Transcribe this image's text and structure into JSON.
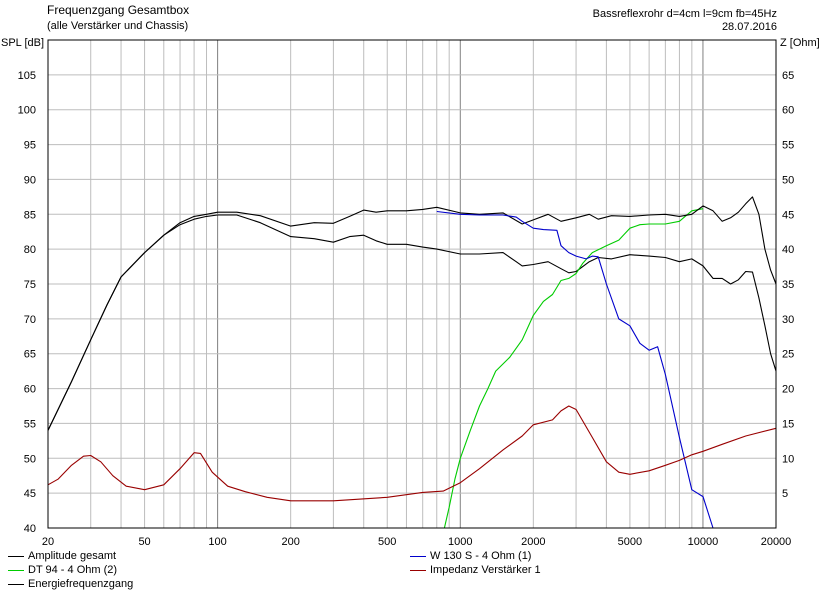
{
  "header": {
    "title": "Frequenzgang Gesamtbox",
    "subtitle": "(alle Verstärker und Chassis)",
    "info": "Bassreflexrohr d=4cm l=9cm fb=45Hz",
    "date": "28.07.2016"
  },
  "chart_data": {
    "type": "line",
    "x_scale": "log",
    "xlim": [
      20,
      20000
    ],
    "ylim_left": [
      40,
      110
    ],
    "ylim_right": [
      0,
      70
    ],
    "ylabel_left": "SPL [dB]",
    "ylabel_right": "Z [Ohm]",
    "x_tick_labels": [
      "20",
      "50",
      "100",
      "200",
      "500",
      "1000",
      "2000",
      "5000",
      "10000",
      "20000"
    ],
    "y_left_tick_labels": [
      "40",
      "45",
      "50",
      "55",
      "60",
      "65",
      "70",
      "75",
      "80",
      "85",
      "90",
      "95",
      "100",
      "105"
    ],
    "y_right_tick_labels": [
      "5",
      "10",
      "15",
      "20",
      "25",
      "30",
      "35",
      "40",
      "45",
      "50",
      "55",
      "60",
      "65"
    ],
    "grid": true,
    "legend_position": "bottom",
    "series": [
      {
        "name": "Amplitude gesamt",
        "color": "#000000",
        "axis": "left",
        "points": [
          [
            20,
            54
          ],
          [
            25,
            61
          ],
          [
            30,
            67
          ],
          [
            35,
            72
          ],
          [
            40,
            76
          ],
          [
            50,
            79.5
          ],
          [
            60,
            82
          ],
          [
            70,
            83.5
          ],
          [
            80,
            84.3
          ],
          [
            90,
            84.7
          ],
          [
            100,
            84.9
          ],
          [
            120,
            84.9
          ],
          [
            150,
            83.8
          ],
          [
            200,
            81.8
          ],
          [
            250,
            81.5
          ],
          [
            300,
            81.0
          ],
          [
            350,
            81.8
          ],
          [
            400,
            82.0
          ],
          [
            450,
            81.2
          ],
          [
            500,
            80.7
          ],
          [
            600,
            80.7
          ],
          [
            700,
            80.3
          ],
          [
            800,
            80.0
          ],
          [
            1000,
            79.3
          ],
          [
            1200,
            79.3
          ],
          [
            1500,
            79.5
          ],
          [
            1700,
            78.2
          ],
          [
            1800,
            77.6
          ],
          [
            2000,
            77.8
          ],
          [
            2300,
            78.2
          ],
          [
            2600,
            77.2
          ],
          [
            2800,
            76.6
          ],
          [
            3000,
            76.8
          ],
          [
            3400,
            78.2
          ],
          [
            3700,
            78.8
          ],
          [
            4200,
            78.6
          ],
          [
            5000,
            79.2
          ],
          [
            6000,
            79.0
          ],
          [
            7000,
            78.8
          ],
          [
            8000,
            78.2
          ],
          [
            9000,
            78.6
          ],
          [
            10000,
            77.6
          ],
          [
            11000,
            75.8
          ],
          [
            12000,
            75.8
          ],
          [
            13000,
            75.0
          ],
          [
            14000,
            75.6
          ],
          [
            15000,
            76.8
          ],
          [
            16000,
            76.7
          ],
          [
            17000,
            73.0
          ],
          [
            18000,
            69.0
          ],
          [
            19000,
            65.0
          ],
          [
            20000,
            62.5
          ]
        ]
      },
      {
        "name": "DT 94 - 4 Ohm (2)",
        "color": "#00cc00",
        "axis": "left",
        "points": [
          [
            20,
            40
          ],
          [
            860,
            40
          ],
          [
            900,
            43
          ],
          [
            950,
            47
          ],
          [
            1000,
            50
          ],
          [
            1100,
            54
          ],
          [
            1200,
            57.5
          ],
          [
            1300,
            60
          ],
          [
            1400,
            62.5
          ],
          [
            1600,
            64.5
          ],
          [
            1800,
            67
          ],
          [
            2000,
            70.5
          ],
          [
            2200,
            72.5
          ],
          [
            2400,
            73.5
          ],
          [
            2600,
            75.5
          ],
          [
            2800,
            75.8
          ],
          [
            3000,
            76.5
          ],
          [
            3200,
            78
          ],
          [
            3500,
            79.5
          ],
          [
            4000,
            80.5
          ],
          [
            4500,
            81.3
          ],
          [
            5000,
            83.0
          ],
          [
            5500,
            83.5
          ],
          [
            6000,
            83.6
          ],
          [
            7000,
            83.6
          ],
          [
            8000,
            84.0
          ],
          [
            9000,
            85.5
          ],
          [
            10000,
            85.8
          ]
        ]
      },
      {
        "name": "Energiefrequenzgang",
        "color": "#000000",
        "axis": "left",
        "points": [
          [
            20,
            54
          ],
          [
            25,
            61
          ],
          [
            30,
            67
          ],
          [
            35,
            72
          ],
          [
            40,
            76
          ],
          [
            50,
            79.5
          ],
          [
            60,
            82
          ],
          [
            70,
            83.8
          ],
          [
            80,
            84.7
          ],
          [
            90,
            85.0
          ],
          [
            100,
            85.3
          ],
          [
            120,
            85.3
          ],
          [
            150,
            84.8
          ],
          [
            200,
            83.3
          ],
          [
            250,
            83.8
          ],
          [
            300,
            83.7
          ],
          [
            350,
            84.7
          ],
          [
            400,
            85.6
          ],
          [
            450,
            85.3
          ],
          [
            500,
            85.5
          ],
          [
            600,
            85.5
          ],
          [
            700,
            85.7
          ],
          [
            800,
            86.0
          ],
          [
            1000,
            85.2
          ],
          [
            1200,
            85.0
          ],
          [
            1500,
            85.2
          ],
          [
            1800,
            83.6
          ],
          [
            2000,
            84.2
          ],
          [
            2300,
            85.0
          ],
          [
            2600,
            84.0
          ],
          [
            3000,
            84.5
          ],
          [
            3400,
            85.0
          ],
          [
            3700,
            84.3
          ],
          [
            4200,
            84.8
          ],
          [
            5000,
            84.7
          ],
          [
            6000,
            84.9
          ],
          [
            7000,
            85.0
          ],
          [
            8000,
            84.7
          ],
          [
            9000,
            85.0
          ],
          [
            10000,
            86.2
          ],
          [
            11000,
            85.5
          ],
          [
            12000,
            84.0
          ],
          [
            13000,
            84.5
          ],
          [
            14000,
            85.3
          ],
          [
            15000,
            86.5
          ],
          [
            16000,
            87.5
          ],
          [
            17000,
            85.0
          ],
          [
            18000,
            80.0
          ],
          [
            19000,
            77.0
          ],
          [
            20000,
            75.0
          ]
        ]
      },
      {
        "name": "W 130 S - 4 Ohm (1)",
        "color": "#0000cc",
        "axis": "left",
        "points": [
          [
            800,
            85.4
          ],
          [
            1000,
            85.0
          ],
          [
            1200,
            84.9
          ],
          [
            1500,
            84.9
          ],
          [
            1700,
            84.6
          ],
          [
            1800,
            84.0
          ],
          [
            2000,
            83.0
          ],
          [
            2200,
            82.8
          ],
          [
            2500,
            82.7
          ],
          [
            2600,
            80.5
          ],
          [
            2800,
            79.5
          ],
          [
            3000,
            79.0
          ],
          [
            3300,
            78.6
          ],
          [
            3500,
            79.0
          ],
          [
            3700,
            78.9
          ],
          [
            4000,
            75.0
          ],
          [
            4500,
            70.0
          ],
          [
            5000,
            69.0
          ],
          [
            5500,
            66.5
          ],
          [
            6000,
            65.5
          ],
          [
            6500,
            66.0
          ],
          [
            7000,
            62.0
          ],
          [
            8000,
            53.0
          ],
          [
            9000,
            45.5
          ],
          [
            10000,
            44.5
          ],
          [
            11000,
            40.0
          ],
          [
            20000,
            40.0
          ]
        ]
      },
      {
        "name": "Impedanz Verstärker 1",
        "color": "#990000",
        "axis": "right",
        "points": [
          [
            20,
            6.2
          ],
          [
            22,
            7.0
          ],
          [
            25,
            9.0
          ],
          [
            28,
            10.3
          ],
          [
            30,
            10.4
          ],
          [
            33,
            9.5
          ],
          [
            37,
            7.5
          ],
          [
            42,
            6.0
          ],
          [
            50,
            5.5
          ],
          [
            60,
            6.2
          ],
          [
            70,
            8.5
          ],
          [
            80,
            10.8
          ],
          [
            85,
            10.7
          ],
          [
            95,
            8.0
          ],
          [
            110,
            6.0
          ],
          [
            130,
            5.2
          ],
          [
            160,
            4.4
          ],
          [
            200,
            3.9
          ],
          [
            300,
            3.9
          ],
          [
            500,
            4.4
          ],
          [
            700,
            5.1
          ],
          [
            850,
            5.3
          ],
          [
            1000,
            6.5
          ],
          [
            1200,
            8.5
          ],
          [
            1500,
            11.2
          ],
          [
            1800,
            13.2
          ],
          [
            2000,
            14.8
          ],
          [
            2400,
            15.5
          ],
          [
            2600,
            16.8
          ],
          [
            2800,
            17.5
          ],
          [
            3000,
            17.0
          ],
          [
            3500,
            13.0
          ],
          [
            4000,
            9.5
          ],
          [
            4500,
            8.0
          ],
          [
            5000,
            7.7
          ],
          [
            6000,
            8.2
          ],
          [
            7000,
            9.0
          ],
          [
            8000,
            9.7
          ],
          [
            9000,
            10.5
          ],
          [
            10000,
            11.0
          ],
          [
            12000,
            12.0
          ],
          [
            15000,
            13.2
          ],
          [
            20000,
            14.3
          ]
        ]
      }
    ]
  }
}
